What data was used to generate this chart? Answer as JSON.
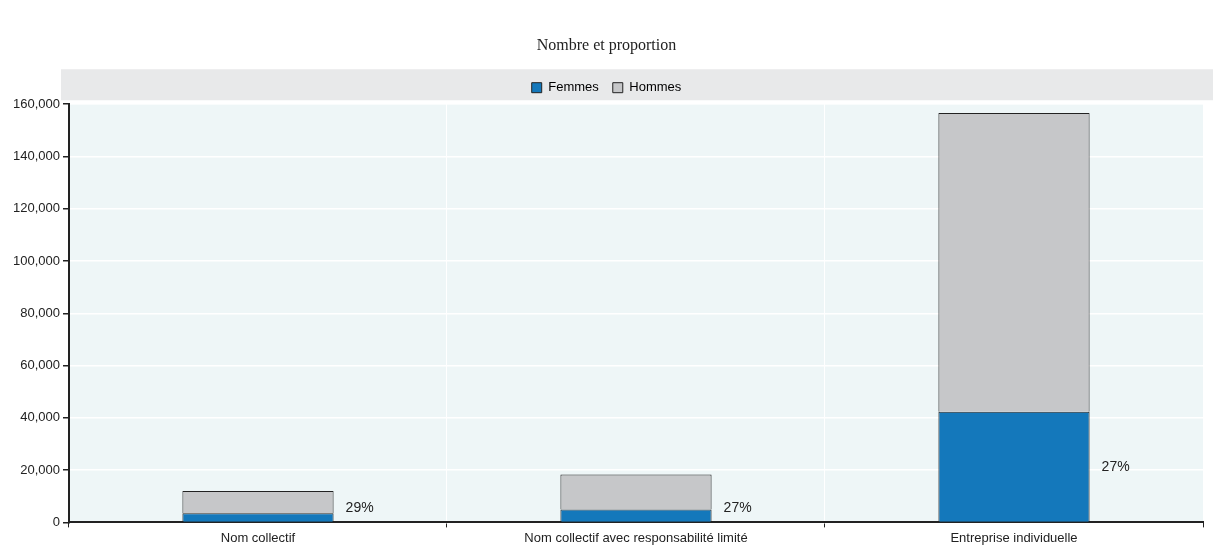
{
  "chart_data": {
    "type": "bar",
    "title": "Nombre et proportion",
    "stacked": true,
    "categories": [
      "Nom collectif",
      "Nom collectif avec responsabilité limité",
      "Entreprise individuelle"
    ],
    "series": [
      {
        "name": "Femmes",
        "color": "#1478bb",
        "values": [
          3500,
          4900,
          42300
        ]
      },
      {
        "name": "Hommes",
        "color": "#c6c7c9",
        "values": [
          8500,
          13400,
          114300
        ]
      }
    ],
    "annotations": [
      "29%",
      "27%",
      "27%"
    ],
    "ylim": [
      0,
      160000
    ],
    "yticks": [
      0,
      {
        "value": 20000,
        "label": "20,000"
      },
      {
        "value": 40000,
        "label": "40,000"
      },
      {
        "value": 60000,
        "label": "60,000"
      },
      {
        "value": 80000,
        "label": "80,000"
      },
      {
        "value": 100000,
        "label": "100,000"
      },
      {
        "value": 120000,
        "label": "120,000"
      },
      {
        "value": 140000,
        "label": "140,000"
      },
      {
        "value": 160000,
        "label": "160,000"
      }
    ],
    "grid": true,
    "legend": "top"
  }
}
